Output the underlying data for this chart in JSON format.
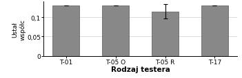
{
  "categories": [
    "T-01",
    "T-05 O",
    "T-05 R",
    "T-17"
  ],
  "values": [
    0.13,
    0.13,
    0.115,
    0.13
  ],
  "errors": [
    0.0,
    0.0,
    0.018,
    0.0
  ],
  "bar_color": "#888888",
  "bar_edge_color": "#555555",
  "ylabel_line1": "Ustał",
  "ylabel_line2": "współc",
  "xlabel": "Rodzaj testera",
  "ylim": [
    0,
    0.14
  ],
  "yticks": [
    0,
    0.05,
    0.1
  ],
  "ytick_labels": [
    "0",
    "0,05",
    "0,1"
  ],
  "bar_width": 0.55,
  "background_color": "#ffffff",
  "grid_color": "#cccccc"
}
